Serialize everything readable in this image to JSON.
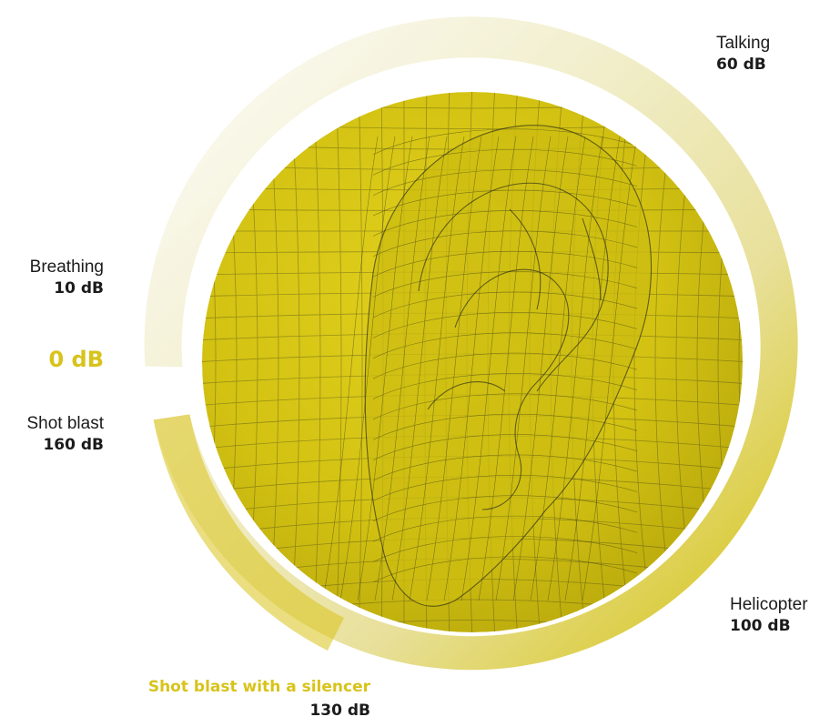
{
  "center_label": "0 dB",
  "levels": [
    {
      "name": "Breathing",
      "value": "10 dB"
    },
    {
      "name": "Talking",
      "value": "60 dB"
    },
    {
      "name": "Helicopter",
      "value": "100 dB"
    },
    {
      "name": "Shot blast with a silencer",
      "value": "130 dB"
    },
    {
      "name": "Shot blast",
      "value": "160 dB"
    }
  ],
  "colors": {
    "accent": "#d8c31a",
    "ring_light": "#f3f1dc",
    "ear_fill": "#d2c213",
    "mesh_line": "#4a4a1c",
    "text": "#1b1b1b"
  },
  "icons": [
    "ear-mesh-illustration"
  ]
}
